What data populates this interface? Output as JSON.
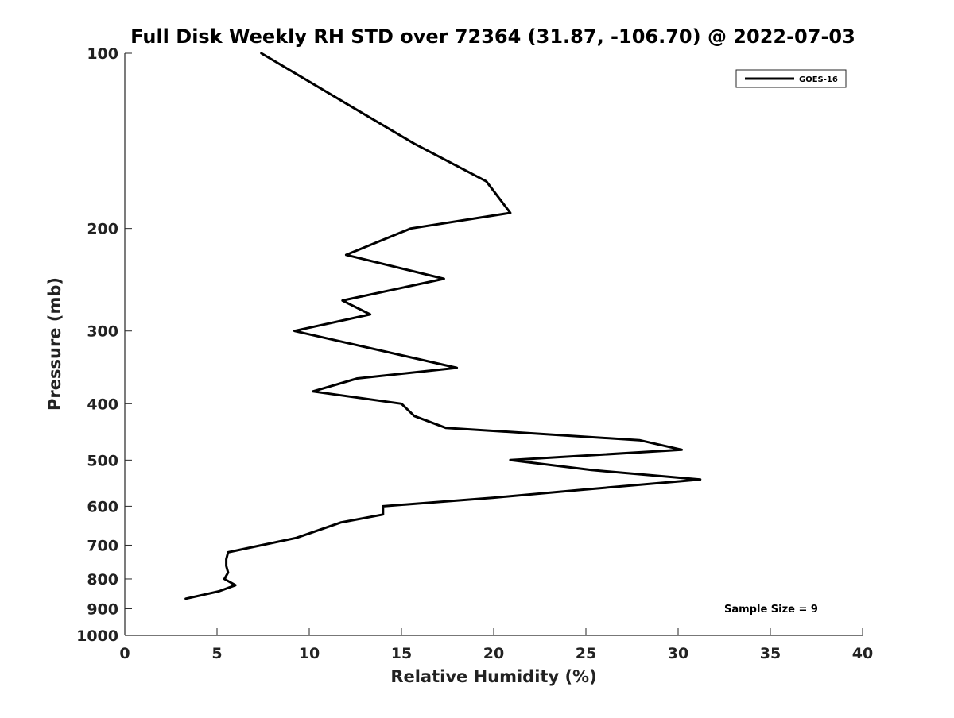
{
  "chart_data": {
    "type": "line",
    "title": "Full Disk Weekly RH STD over 72364 (31.87, -106.70) @ 2022-07-03",
    "xlabel": "Relative Humidity (%)",
    "ylabel": "Pressure (mb)",
    "xlim": [
      0,
      40
    ],
    "ylim": [
      100,
      1000
    ],
    "y_scale": "log",
    "y_inverted": true,
    "grid": false,
    "legend_position": "top-right",
    "x_ticks": [
      0,
      5,
      10,
      15,
      20,
      25,
      30,
      35,
      40
    ],
    "x_tick_labels": [
      "0",
      "5",
      "10",
      "15",
      "20",
      "25",
      "30",
      "35",
      "40"
    ],
    "y_ticks": [
      100,
      200,
      300,
      400,
      500,
      600,
      700,
      800,
      900,
      1000
    ],
    "y_tick_labels": [
      "100",
      "200",
      "300",
      "400",
      "500",
      "600",
      "700",
      "800",
      "900",
      "1000"
    ],
    "series": [
      {
        "name": "GOES-16",
        "color": "#000000",
        "points": [
          {
            "x": 7.4,
            "y": 100
          },
          {
            "x": 12.0,
            "y": 122
          },
          {
            "x": 15.7,
            "y": 143
          },
          {
            "x": 19.6,
            "y": 166
          },
          {
            "x": 20.9,
            "y": 188
          },
          {
            "x": 15.5,
            "y": 200
          },
          {
            "x": 12.0,
            "y": 222
          },
          {
            "x": 17.3,
            "y": 244
          },
          {
            "x": 11.8,
            "y": 266
          },
          {
            "x": 13.3,
            "y": 281
          },
          {
            "x": 9.2,
            "y": 300
          },
          {
            "x": 18.0,
            "y": 347
          },
          {
            "x": 12.6,
            "y": 362
          },
          {
            "x": 10.2,
            "y": 381
          },
          {
            "x": 15.0,
            "y": 400
          },
          {
            "x": 15.7,
            "y": 420
          },
          {
            "x": 17.4,
            "y": 440
          },
          {
            "x": 27.9,
            "y": 462
          },
          {
            "x": 30.2,
            "y": 480
          },
          {
            "x": 20.9,
            "y": 500
          },
          {
            "x": 25.3,
            "y": 520
          },
          {
            "x": 31.2,
            "y": 540
          },
          {
            "x": 24.8,
            "y": 562
          },
          {
            "x": 20.0,
            "y": 580
          },
          {
            "x": 14.0,
            "y": 600
          },
          {
            "x": 14.0,
            "y": 620
          },
          {
            "x": 11.7,
            "y": 640
          },
          {
            "x": 9.3,
            "y": 680
          },
          {
            "x": 7.4,
            "y": 700
          },
          {
            "x": 5.6,
            "y": 720
          },
          {
            "x": 5.5,
            "y": 740
          },
          {
            "x": 5.5,
            "y": 760
          },
          {
            "x": 5.6,
            "y": 780
          },
          {
            "x": 5.4,
            "y": 800
          },
          {
            "x": 6.0,
            "y": 820
          },
          {
            "x": 5.1,
            "y": 840
          },
          {
            "x": 3.3,
            "y": 865
          }
        ]
      }
    ],
    "legend": {
      "entries": [
        "GOES-16"
      ]
    },
    "annotations": [
      {
        "text": "Sample Size = 9"
      }
    ]
  }
}
